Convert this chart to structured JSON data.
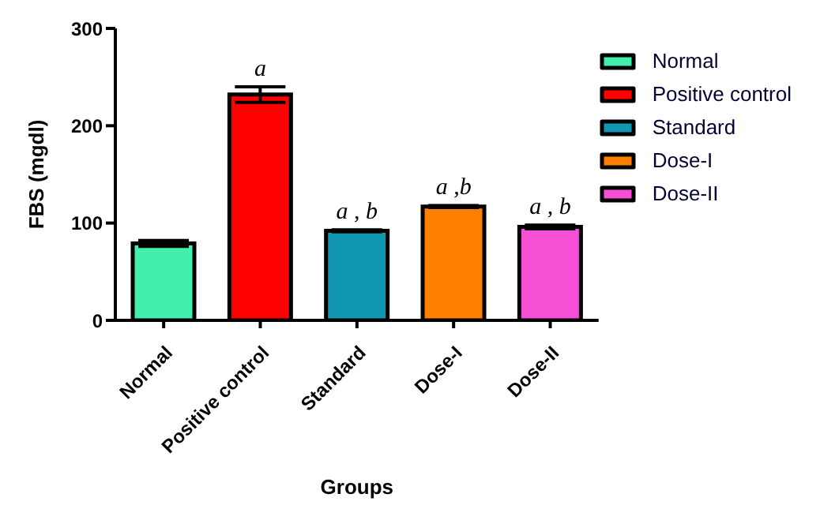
{
  "chart_data": {
    "type": "bar",
    "xlabel": "Groups",
    "ylabel": "FBS (mgdl)",
    "categories": [
      "Normal",
      "Positive control",
      "Standard",
      "Dose-I",
      "Dose-II"
    ],
    "stacked": true,
    "series": [
      {
        "name": "Normal",
        "color": "#43efad",
        "values": [
          79,
          null,
          null,
          null,
          null
        ],
        "errors": [
          3,
          null,
          null,
          null,
          null
        ]
      },
      {
        "name": "Positive control",
        "color": "#ff0000",
        "values": [
          null,
          232,
          null,
          null,
          null
        ],
        "errors": [
          null,
          8,
          null,
          null,
          null
        ]
      },
      {
        "name": "Standard",
        "color": "#1297b3",
        "values": [
          null,
          null,
          92,
          null,
          null
        ],
        "errors": [
          null,
          null,
          1,
          null,
          null
        ]
      },
      {
        "name": "Dose-I",
        "color": "#ff7f00",
        "values": [
          null,
          null,
          null,
          117,
          null
        ],
        "errors": [
          null,
          null,
          null,
          1,
          null
        ]
      },
      {
        "name": "Dose-II",
        "color": "#f54fd6",
        "values": [
          null,
          null,
          null,
          null,
          96
        ],
        "errors": [
          null,
          null,
          null,
          null,
          2
        ]
      }
    ],
    "ylim": [
      0,
      300
    ],
    "yticks": [
      0,
      100,
      200,
      300
    ],
    "legend": "right",
    "annotations": [
      {
        "text": "a",
        "x": "Positive control",
        "y": 240
      },
      {
        "text": "a , b",
        "x": "Standard",
        "y": 93
      },
      {
        "text": "a ,b",
        "x": "Dose-I",
        "y": 118
      },
      {
        "text": "a , b",
        "x": "Dose-II",
        "y": 98
      }
    ]
  }
}
